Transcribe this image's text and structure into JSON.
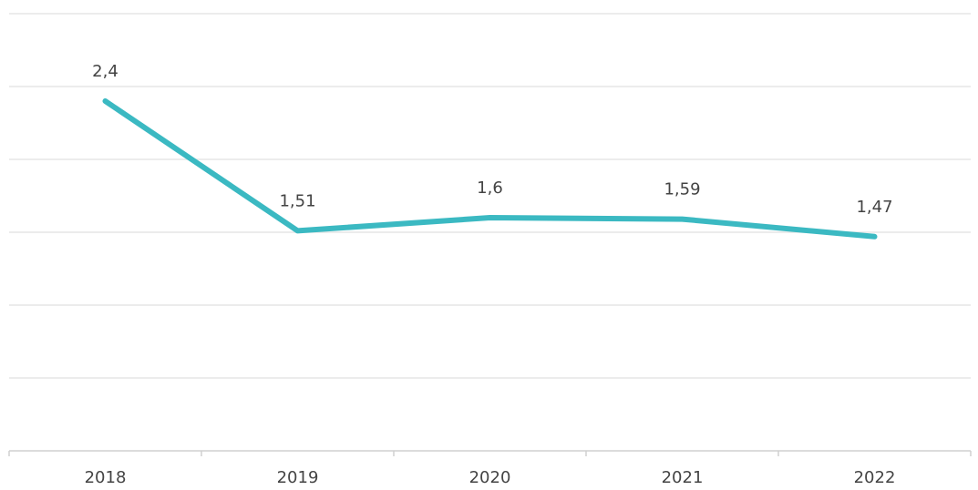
{
  "chart_data": {
    "type": "line",
    "categories": [
      "2018",
      "2019",
      "2020",
      "2021",
      "2022"
    ],
    "series": [
      {
        "name": null,
        "color": "#3bb9c2",
        "values": [
          2.4,
          1.51,
          1.6,
          1.59,
          1.47
        ],
        "value_labels": [
          "2,4",
          "1,51",
          "1,6",
          "1,59",
          "1,47"
        ]
      }
    ],
    "ylim": [
      0,
      3
    ],
    "yticks": [
      0,
      0.5,
      1,
      1.5,
      2,
      2.5,
      3
    ],
    "grid": true
  }
}
